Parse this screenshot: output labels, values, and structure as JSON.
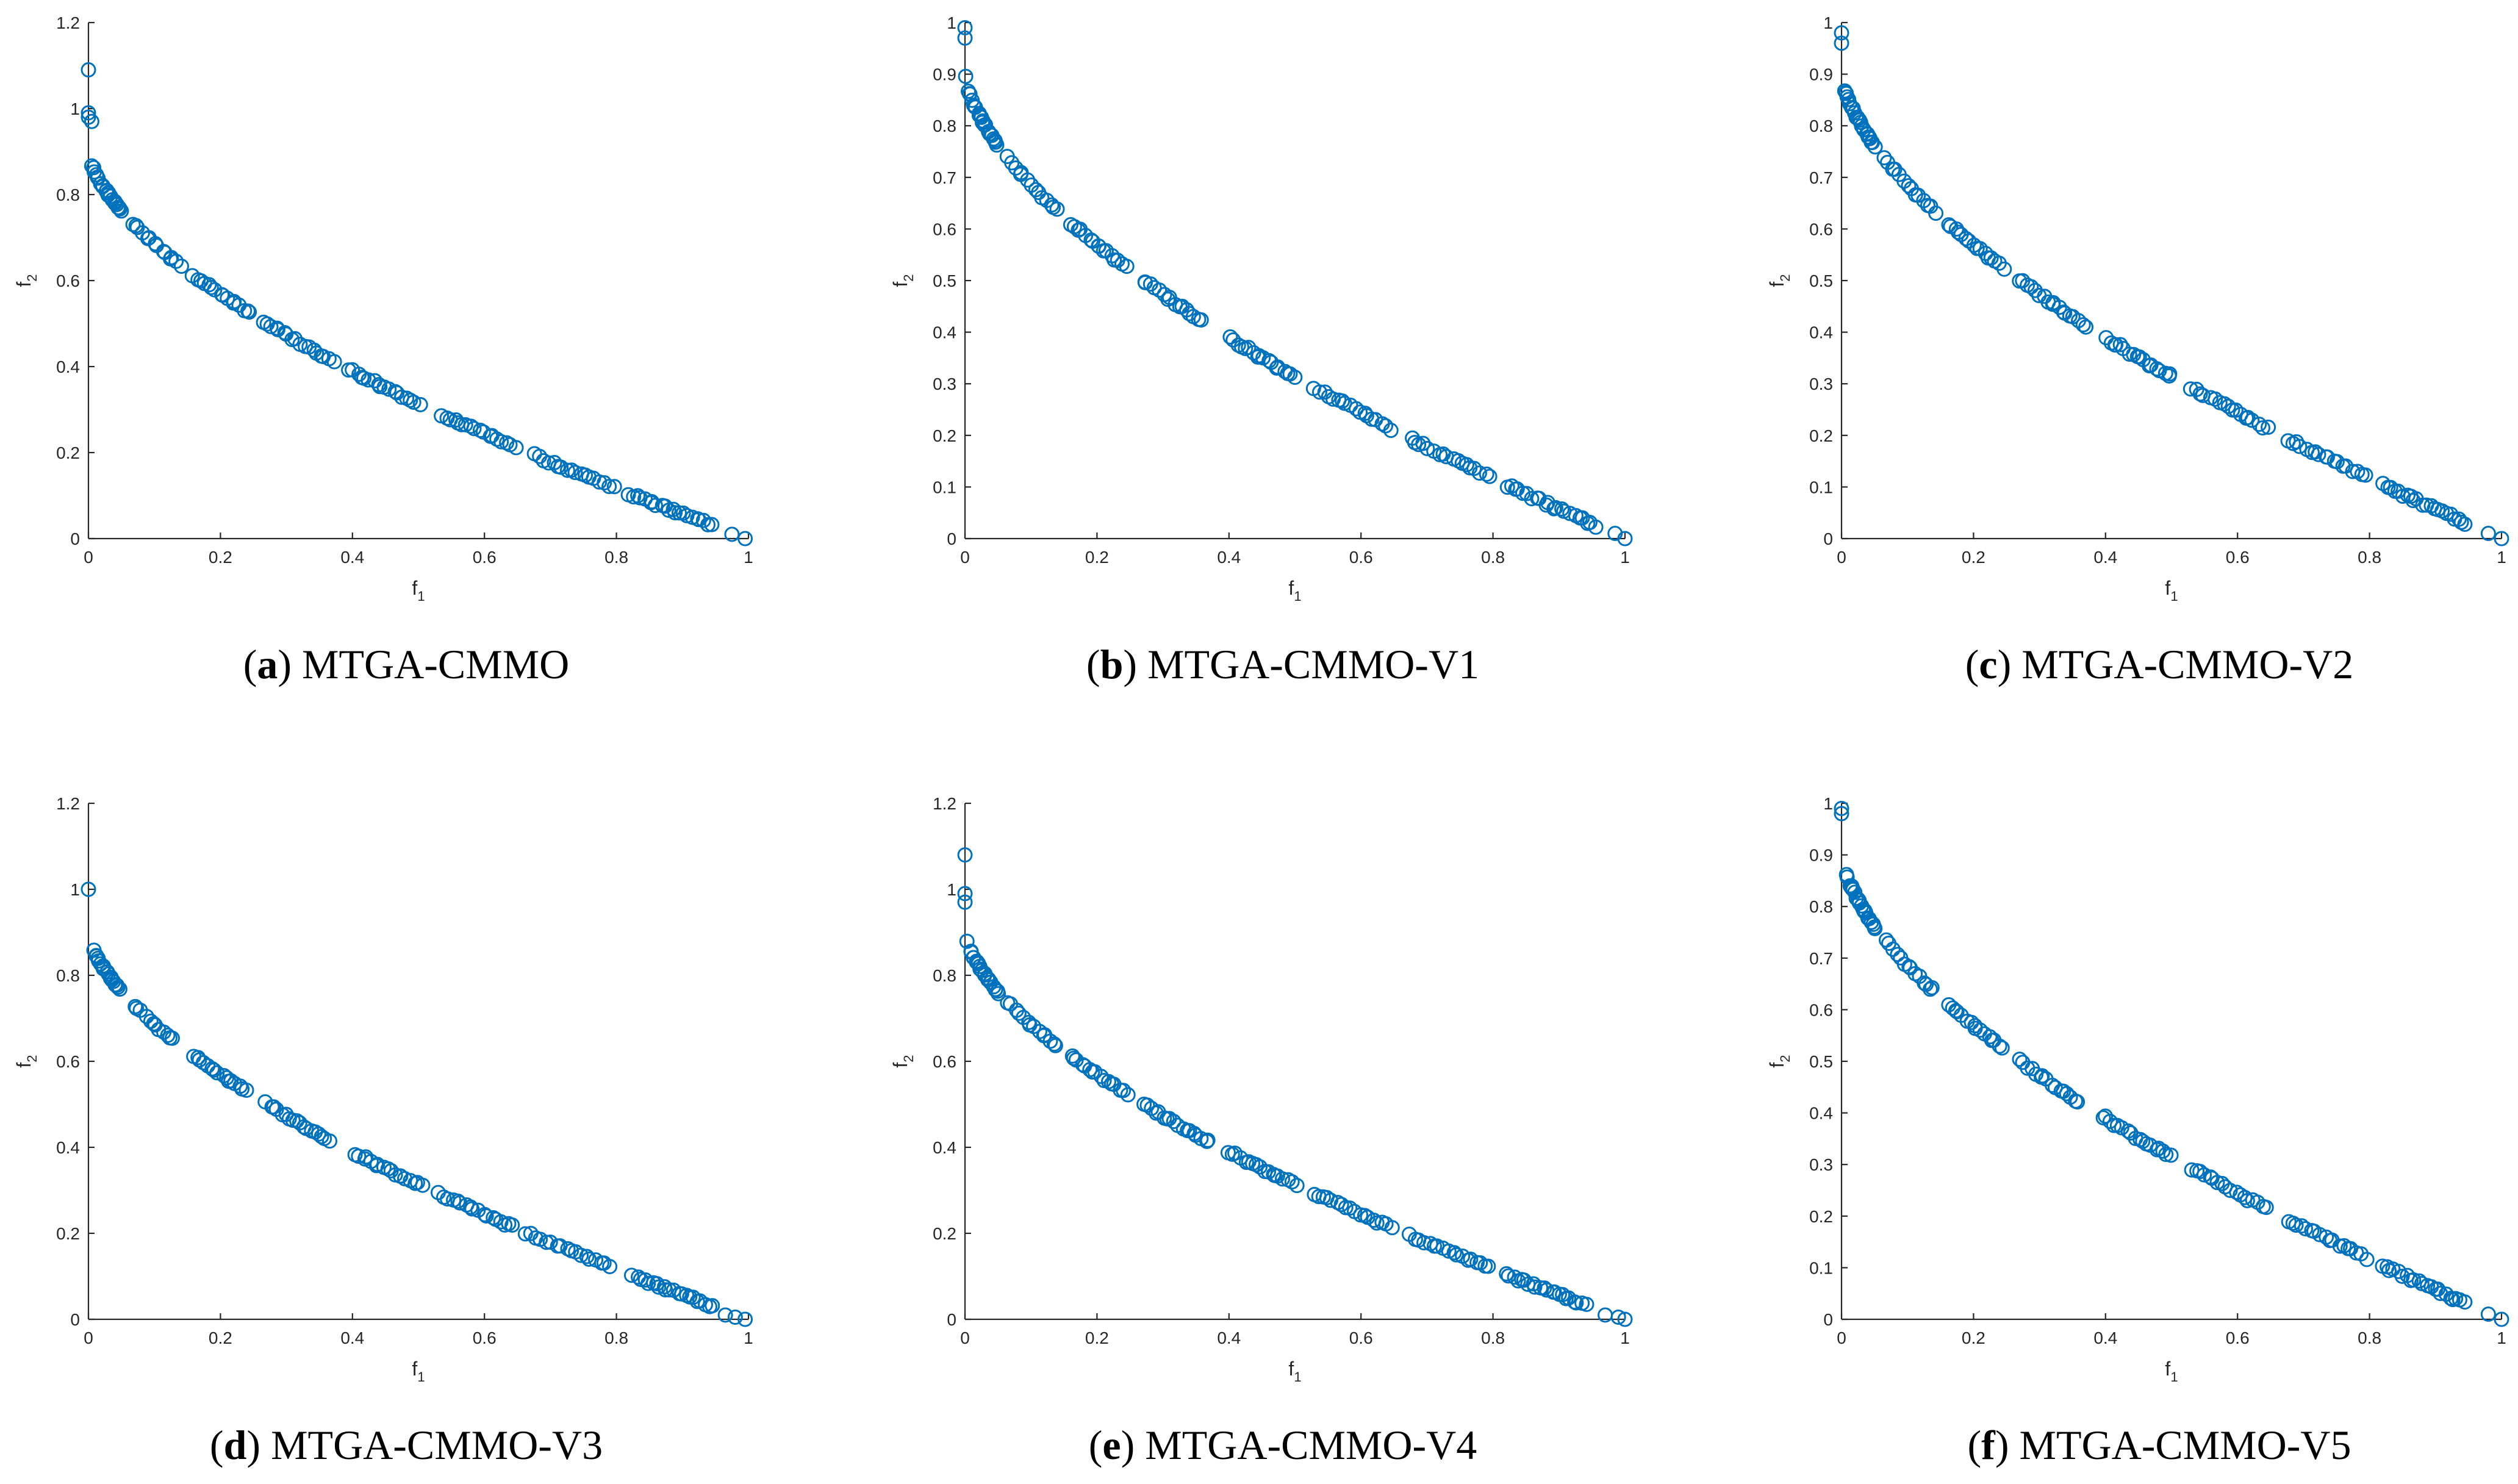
{
  "figure": {
    "panels": [
      {
        "id": "a",
        "caption_label": "a",
        "caption_text": "MTGA-CMMO",
        "x_axis_label": "f",
        "x_axis_sub": "1",
        "y_axis_label": "f",
        "y_axis_sub": "2",
        "x_ticks": [
          "0",
          "0.2",
          "0.4",
          "0.6",
          "0.8",
          "1"
        ],
        "y_ticks": [
          "0",
          "0.2",
          "0.4",
          "0.6",
          "0.8",
          "1",
          "1.2"
        ]
      },
      {
        "id": "b",
        "caption_label": "b",
        "caption_text": "MTGA-CMMO-V1",
        "x_axis_label": "f",
        "x_axis_sub": "1",
        "y_axis_label": "f",
        "y_axis_sub": "2",
        "x_ticks": [
          "0",
          "0.2",
          "0.4",
          "0.6",
          "0.8",
          "1"
        ],
        "y_ticks": [
          "0",
          "0.1",
          "0.2",
          "0.3",
          "0.4",
          "0.5",
          "0.6",
          "0.7",
          "0.8",
          "0.9",
          "1"
        ]
      },
      {
        "id": "c",
        "caption_label": "c",
        "caption_text": "MTGA-CMMO-V2",
        "x_axis_label": "f",
        "x_axis_sub": "1",
        "y_axis_label": "f",
        "y_axis_sub": "2",
        "x_ticks": [
          "0",
          "0.2",
          "0.4",
          "0.6",
          "0.8",
          "1"
        ],
        "y_ticks": [
          "0",
          "0.1",
          "0.2",
          "0.3",
          "0.4",
          "0.5",
          "0.6",
          "0.7",
          "0.8",
          "0.9",
          "1"
        ]
      },
      {
        "id": "d",
        "caption_label": "d",
        "caption_text": "MTGA-CMMO-V3",
        "x_axis_label": "f",
        "x_axis_sub": "1",
        "y_axis_label": "f",
        "y_axis_sub": "2",
        "x_ticks": [
          "0",
          "0.2",
          "0.4",
          "0.6",
          "0.8",
          "1"
        ],
        "y_ticks": [
          "0",
          "0.2",
          "0.4",
          "0.6",
          "0.8",
          "1",
          "1.2"
        ]
      },
      {
        "id": "e",
        "caption_label": "e",
        "caption_text": "MTGA-CMMO-V4",
        "x_axis_label": "f",
        "x_axis_sub": "1",
        "y_axis_label": "f",
        "y_axis_sub": "2",
        "x_ticks": [
          "0",
          "0.2",
          "0.4",
          "0.6",
          "0.8",
          "1"
        ],
        "y_ticks": [
          "0",
          "0.2",
          "0.4",
          "0.6",
          "0.8",
          "1",
          "1.2"
        ]
      },
      {
        "id": "f",
        "caption_label": "f",
        "caption_text": "MTGA-CMMO-V5",
        "x_axis_label": "f",
        "x_axis_sub": "1",
        "y_axis_label": "f",
        "y_axis_sub": "2",
        "x_ticks": [
          "0",
          "0.2",
          "0.4",
          "0.6",
          "0.8",
          "1"
        ],
        "y_ticks": [
          "0",
          "0.1",
          "0.2",
          "0.3",
          "0.4",
          "0.5",
          "0.6",
          "0.7",
          "0.8",
          "0.9",
          "1"
        ]
      }
    ]
  },
  "colors": {
    "marker": "#0072BD",
    "axis": "#262626"
  },
  "chart_data": [
    {
      "id": "a",
      "type": "scatter",
      "title": "(a) MTGA-CMMO",
      "xlabel": "f1",
      "ylabel": "f2",
      "xlim": [
        0,
        1
      ],
      "ylim": [
        0,
        1.2
      ],
      "marker": "open-circle",
      "extra_points": [
        [
          0.0,
          1.09
        ],
        [
          0.0,
          0.99
        ],
        [
          0.0,
          0.98
        ],
        [
          0.005,
          0.97
        ],
        [
          0.975,
          0.01
        ],
        [
          0.995,
          0.0
        ]
      ],
      "segments": [
        [
          0.008,
          0.05,
          24
        ],
        [
          0.065,
          0.14,
          14
        ],
        [
          0.16,
          0.245,
          16
        ],
        [
          0.265,
          0.37,
          18
        ],
        [
          0.395,
          0.5,
          18
        ],
        [
          0.535,
          0.645,
          18
        ],
        [
          0.675,
          0.795,
          18
        ],
        [
          0.82,
          0.945,
          22
        ]
      ]
    },
    {
      "id": "b",
      "type": "scatter",
      "title": "(b) MTGA-CMMO-V1",
      "xlabel": "f1",
      "ylabel": "f2",
      "xlim": [
        0,
        1
      ],
      "ylim": [
        0,
        1
      ],
      "marker": "open-circle",
      "extra_points": [
        [
          0.0,
          0.99
        ],
        [
          0.0,
          0.97
        ],
        [
          0.985,
          0.01
        ],
        [
          1.0,
          0.0
        ]
      ],
      "segments": [
        [
          0.003,
          0.05,
          24
        ],
        [
          0.065,
          0.14,
          14
        ],
        [
          0.16,
          0.245,
          16
        ],
        [
          0.27,
          0.36,
          16
        ],
        [
          0.4,
          0.5,
          18
        ],
        [
          0.53,
          0.645,
          18
        ],
        [
          0.675,
          0.795,
          18
        ],
        [
          0.82,
          0.955,
          22
        ]
      ]
    },
    {
      "id": "c",
      "type": "scatter",
      "title": "(c) MTGA-CMMO-V2",
      "xlabel": "f1",
      "ylabel": "f2",
      "xlim": [
        0,
        1
      ],
      "ylim": [
        0,
        1
      ],
      "marker": "open-circle",
      "extra_points": [
        [
          0.0,
          0.98
        ],
        [
          0.0,
          0.96
        ],
        [
          0.98,
          0.01
        ],
        [
          1.0,
          0.0
        ]
      ],
      "segments": [
        [
          0.003,
          0.05,
          24
        ],
        [
          0.065,
          0.14,
          14
        ],
        [
          0.16,
          0.245,
          16
        ],
        [
          0.27,
          0.37,
          18
        ],
        [
          0.4,
          0.5,
          18
        ],
        [
          0.53,
          0.645,
          18
        ],
        [
          0.675,
          0.795,
          18
        ],
        [
          0.82,
          0.945,
          22
        ]
      ]
    },
    {
      "id": "d",
      "type": "scatter",
      "title": "(d) MTGA-CMMO-V3",
      "xlabel": "f1",
      "ylabel": "f2",
      "xlim": [
        0,
        1
      ],
      "ylim": [
        0,
        1.2
      ],
      "marker": "open-circle",
      "extra_points": [
        [
          0.0,
          1.0
        ],
        [
          0.965,
          0.01
        ],
        [
          0.98,
          0.005
        ],
        [
          0.995,
          0.0
        ]
      ],
      "segments": [
        [
          0.008,
          0.045,
          20
        ],
        [
          0.07,
          0.13,
          12
        ],
        [
          0.16,
          0.24,
          16
        ],
        [
          0.27,
          0.365,
          18
        ],
        [
          0.405,
          0.505,
          18
        ],
        [
          0.53,
          0.645,
          18
        ],
        [
          0.665,
          0.79,
          18
        ],
        [
          0.825,
          0.945,
          22
        ]
      ]
    },
    {
      "id": "e",
      "type": "scatter",
      "title": "(e) MTGA-CMMO-V4",
      "xlabel": "f1",
      "ylabel": "f2",
      "xlim": [
        0,
        1
      ],
      "ylim": [
        0,
        1.2
      ],
      "marker": "open-circle",
      "extra_points": [
        [
          0.0,
          1.08
        ],
        [
          0.0,
          0.99
        ],
        [
          0.0,
          0.97
        ],
        [
          0.97,
          0.01
        ],
        [
          0.99,
          0.005
        ],
        [
          1.0,
          0.0
        ]
      ],
      "segments": [
        [
          0.005,
          0.05,
          24
        ],
        [
          0.065,
          0.14,
          14
        ],
        [
          0.16,
          0.245,
          16
        ],
        [
          0.27,
          0.37,
          18
        ],
        [
          0.4,
          0.5,
          18
        ],
        [
          0.53,
          0.645,
          18
        ],
        [
          0.675,
          0.795,
          18
        ],
        [
          0.82,
          0.94,
          22
        ]
      ]
    },
    {
      "id": "f",
      "type": "scatter",
      "title": "(f) MTGA-CMMO-V5",
      "xlabel": "f1",
      "ylabel": "f2",
      "xlim": [
        0,
        1
      ],
      "ylim": [
        0,
        1
      ],
      "marker": "open-circle",
      "extra_points": [
        [
          0.0,
          0.99
        ],
        [
          0.0,
          0.98
        ],
        [
          0.98,
          0.01
        ],
        [
          1.0,
          0.0
        ]
      ],
      "segments": [
        [
          0.008,
          0.05,
          24
        ],
        [
          0.065,
          0.14,
          14
        ],
        [
          0.16,
          0.245,
          16
        ],
        [
          0.27,
          0.36,
          16
        ],
        [
          0.395,
          0.5,
          18
        ],
        [
          0.53,
          0.645,
          18
        ],
        [
          0.675,
          0.795,
          18
        ],
        [
          0.82,
          0.945,
          22
        ]
      ]
    }
  ]
}
